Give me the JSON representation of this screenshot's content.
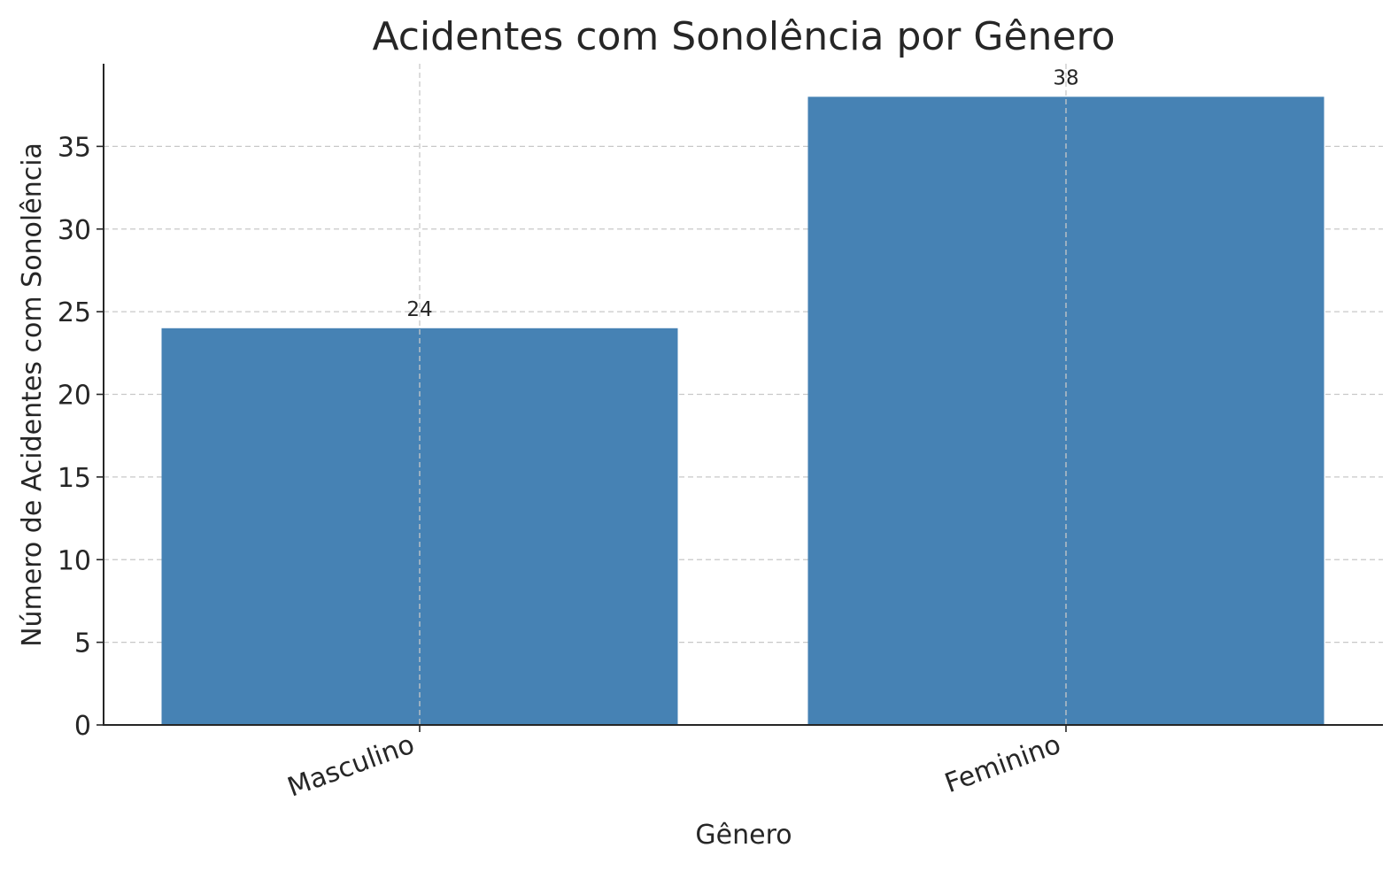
{
  "chart_data": {
    "type": "bar",
    "title": "Acidentes com Sonolência por Gênero",
    "xlabel": "Gênero",
    "ylabel": "Número de Acidentes com Sonolência",
    "categories": [
      "Masculino",
      "Feminino"
    ],
    "values": [
      24,
      38
    ],
    "data_labels": [
      "24",
      "38"
    ],
    "ylim": [
      0,
      40
    ],
    "yticks": [
      0,
      5,
      10,
      15,
      20,
      25,
      30,
      35
    ],
    "ytick_labels": [
      "0",
      "5",
      "10",
      "15",
      "20",
      "25",
      "30",
      "35"
    ],
    "x_tick_label_rotation": "slanted",
    "grid": true,
    "legend": false,
    "bar_color": "#4682b4"
  }
}
